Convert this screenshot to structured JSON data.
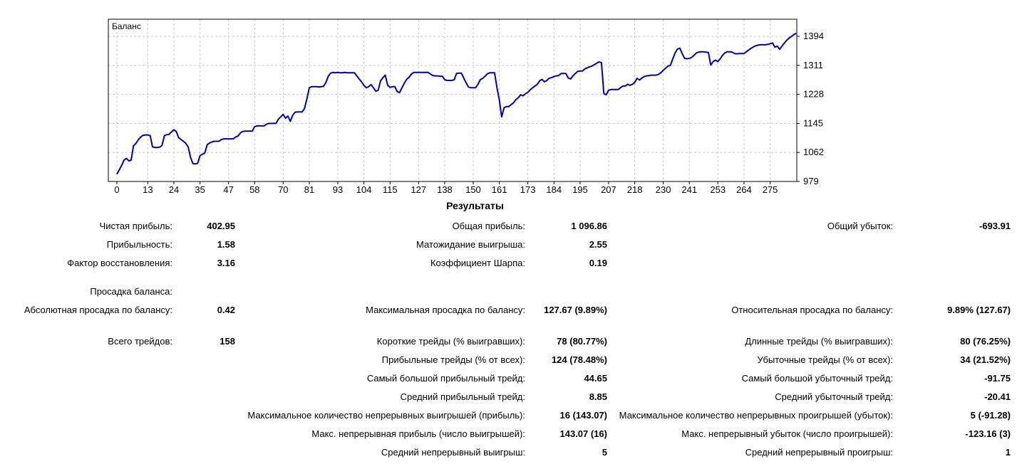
{
  "colors": {
    "line": "#0000A8",
    "grid": "#c8c8c8",
    "border": "#000000",
    "background": "#ffffff",
    "text": "#000000"
  },
  "chart_data": {
    "type": "line",
    "title": "Баланс",
    "legend": [
      "Баланс"
    ],
    "grid": true,
    "y_axis_side": "right",
    "x_ticks": [
      0,
      13,
      24,
      35,
      47,
      58,
      70,
      81,
      93,
      104,
      115,
      127,
      138,
      150,
      161,
      173,
      184,
      195,
      207,
      218,
      230,
      241,
      253,
      264,
      275
    ],
    "y_ticks": [
      1394,
      1311,
      1228,
      1145,
      1062,
      979
    ],
    "xlim": [
      0,
      286
    ],
    "ylim": [
      979,
      1443
    ],
    "points": [
      [
        0,
        1000
      ],
      [
        1,
        1012
      ],
      [
        2,
        1025
      ],
      [
        3,
        1040
      ],
      [
        4,
        1045
      ],
      [
        5,
        1038
      ],
      [
        6,
        1040
      ],
      [
        7,
        1081
      ],
      [
        8,
        1088
      ],
      [
        9,
        1098
      ],
      [
        10,
        1106
      ],
      [
        11,
        1111
      ],
      [
        12,
        1112
      ],
      [
        13,
        1112
      ],
      [
        14,
        1110
      ],
      [
        15,
        1078
      ],
      [
        16,
        1076
      ],
      [
        17,
        1076
      ],
      [
        18,
        1077
      ],
      [
        19,
        1082
      ],
      [
        20,
        1110
      ],
      [
        21,
        1113
      ],
      [
        22,
        1114
      ],
      [
        23,
        1121
      ],
      [
        24,
        1127
      ],
      [
        25,
        1122
      ],
      [
        26,
        1104
      ],
      [
        27,
        1099
      ],
      [
        28,
        1094
      ],
      [
        29,
        1088
      ],
      [
        30,
        1078
      ],
      [
        31,
        1048
      ],
      [
        32,
        1030
      ],
      [
        33,
        1029
      ],
      [
        34,
        1031
      ],
      [
        35,
        1053
      ],
      [
        36,
        1057
      ],
      [
        37,
        1060
      ],
      [
        38,
        1084
      ],
      [
        39,
        1089
      ],
      [
        40,
        1092
      ],
      [
        41,
        1094
      ],
      [
        42,
        1094
      ],
      [
        43,
        1094
      ],
      [
        44,
        1099
      ],
      [
        45,
        1101
      ],
      [
        46,
        1101
      ],
      [
        47,
        1101
      ],
      [
        48,
        1101
      ],
      [
        49,
        1101
      ],
      [
        50,
        1106
      ],
      [
        51,
        1109
      ],
      [
        52,
        1118
      ],
      [
        53,
        1122
      ],
      [
        54,
        1123
      ],
      [
        55,
        1123
      ],
      [
        56,
        1123
      ],
      [
        57,
        1123
      ],
      [
        58,
        1136
      ],
      [
        59,
        1138
      ],
      [
        60,
        1138
      ],
      [
        61,
        1138
      ],
      [
        62,
        1138
      ],
      [
        63,
        1143
      ],
      [
        64,
        1145
      ],
      [
        65,
        1145
      ],
      [
        66,
        1145
      ],
      [
        67,
        1145
      ],
      [
        68,
        1157
      ],
      [
        69,
        1164
      ],
      [
        70,
        1171
      ],
      [
        71,
        1160
      ],
      [
        72,
        1166
      ],
      [
        73,
        1151
      ],
      [
        74,
        1168
      ],
      [
        75,
        1177
      ],
      [
        76,
        1178
      ],
      [
        77,
        1178
      ],
      [
        78,
        1178
      ],
      [
        79,
        1188
      ],
      [
        80,
        1215
      ],
      [
        81,
        1247
      ],
      [
        82,
        1250
      ],
      [
        83,
        1250
      ],
      [
        84,
        1250
      ],
      [
        85,
        1249
      ],
      [
        86,
        1250
      ],
      [
        87,
        1251
      ],
      [
        88,
        1262
      ],
      [
        89,
        1280
      ],
      [
        90,
        1289
      ],
      [
        91,
        1291
      ],
      [
        92,
        1290
      ],
      [
        93,
        1291
      ],
      [
        94,
        1290
      ],
      [
        95,
        1290
      ],
      [
        96,
        1291
      ],
      [
        97,
        1290
      ],
      [
        98,
        1290
      ],
      [
        99,
        1290
      ],
      [
        100,
        1290
      ],
      [
        101,
        1281
      ],
      [
        102,
        1272
      ],
      [
        103,
        1264
      ],
      [
        104,
        1254
      ],
      [
        105,
        1247
      ],
      [
        106,
        1250
      ],
      [
        107,
        1256
      ],
      [
        108,
        1247
      ],
      [
        109,
        1237
      ],
      [
        110,
        1240
      ],
      [
        111,
        1267
      ],
      [
        112,
        1276
      ],
      [
        113,
        1283
      ],
      [
        114,
        1254
      ],
      [
        115,
        1248
      ],
      [
        116,
        1250
      ],
      [
        117,
        1250
      ],
      [
        118,
        1236
      ],
      [
        119,
        1233
      ],
      [
        120,
        1247
      ],
      [
        121,
        1260
      ],
      [
        122,
        1271
      ],
      [
        123,
        1277
      ],
      [
        124,
        1286
      ],
      [
        125,
        1291
      ],
      [
        127,
        1291
      ],
      [
        129,
        1291
      ],
      [
        131,
        1291
      ],
      [
        132,
        1286
      ],
      [
        133,
        1282
      ],
      [
        134,
        1281
      ],
      [
        135,
        1281
      ],
      [
        136,
        1280
      ],
      [
        137,
        1280
      ],
      [
        138,
        1270
      ],
      [
        139,
        1268
      ],
      [
        140,
        1268
      ],
      [
        141,
        1268
      ],
      [
        142,
        1270
      ],
      [
        143,
        1288
      ],
      [
        144,
        1289
      ],
      [
        145,
        1289
      ],
      [
        146,
        1275
      ],
      [
        147,
        1261
      ],
      [
        148,
        1249
      ],
      [
        149,
        1247
      ],
      [
        150,
        1247
      ],
      [
        151,
        1247
      ],
      [
        152,
        1257
      ],
      [
        153,
        1270
      ],
      [
        154,
        1274
      ],
      [
        155,
        1280
      ],
      [
        156,
        1287
      ],
      [
        157,
        1290
      ],
      [
        158,
        1290
      ],
      [
        159,
        1290
      ],
      [
        160,
        1247
      ],
      [
        161,
        1212
      ],
      [
        162,
        1164
      ],
      [
        163,
        1190
      ],
      [
        164,
        1193
      ],
      [
        165,
        1193
      ],
      [
        166,
        1199
      ],
      [
        167,
        1204
      ],
      [
        168,
        1213
      ],
      [
        169,
        1219
      ],
      [
        170,
        1227
      ],
      [
        171,
        1224
      ],
      [
        172,
        1230
      ],
      [
        173,
        1234
      ],
      [
        174,
        1241
      ],
      [
        175,
        1247
      ],
      [
        176,
        1252
      ],
      [
        177,
        1257
      ],
      [
        178,
        1267
      ],
      [
        179,
        1271
      ],
      [
        180,
        1264
      ],
      [
        181,
        1268
      ],
      [
        182,
        1274
      ],
      [
        183,
        1276
      ],
      [
        184,
        1279
      ],
      [
        185,
        1281
      ],
      [
        186,
        1282
      ],
      [
        187,
        1288
      ],
      [
        188,
        1288
      ],
      [
        189,
        1288
      ],
      [
        190,
        1275
      ],
      [
        191,
        1272
      ],
      [
        192,
        1281
      ],
      [
        193,
        1288
      ],
      [
        194,
        1294
      ],
      [
        195,
        1295
      ],
      [
        196,
        1295
      ],
      [
        197,
        1301
      ],
      [
        198,
        1304
      ],
      [
        199,
        1307
      ],
      [
        200,
        1309
      ],
      [
        201,
        1313
      ],
      [
        202,
        1317
      ],
      [
        203,
        1321
      ],
      [
        204,
        1319
      ],
      [
        205,
        1230
      ],
      [
        206,
        1227
      ],
      [
        207,
        1240
      ],
      [
        208,
        1242
      ],
      [
        209,
        1242
      ],
      [
        210,
        1242
      ],
      [
        211,
        1242
      ],
      [
        212,
        1247
      ],
      [
        213,
        1252
      ],
      [
        214,
        1252
      ],
      [
        215,
        1257
      ],
      [
        216,
        1254
      ],
      [
        217,
        1257
      ],
      [
        218,
        1262
      ],
      [
        219,
        1274
      ],
      [
        220,
        1269
      ],
      [
        221,
        1275
      ],
      [
        222,
        1279
      ],
      [
        223,
        1281
      ],
      [
        224,
        1282
      ],
      [
        225,
        1283
      ],
      [
        226,
        1283
      ],
      [
        227,
        1283
      ],
      [
        228,
        1285
      ],
      [
        229,
        1290
      ],
      [
        230,
        1297
      ],
      [
        231,
        1303
      ],
      [
        232,
        1309
      ],
      [
        233,
        1311
      ],
      [
        234,
        1329
      ],
      [
        235,
        1347
      ],
      [
        236,
        1358
      ],
      [
        237,
        1360
      ],
      [
        238,
        1344
      ],
      [
        239,
        1331
      ],
      [
        240,
        1330
      ],
      [
        241,
        1331
      ],
      [
        242,
        1334
      ],
      [
        243,
        1340
      ],
      [
        244,
        1347
      ],
      [
        245,
        1349
      ],
      [
        246,
        1350
      ],
      [
        247,
        1350
      ],
      [
        248,
        1349
      ],
      [
        249,
        1348
      ],
      [
        250,
        1312
      ],
      [
        251,
        1322
      ],
      [
        252,
        1326
      ],
      [
        253,
        1322
      ],
      [
        254,
        1330
      ],
      [
        255,
        1340
      ],
      [
        256,
        1347
      ],
      [
        257,
        1350
      ],
      [
        258,
        1350
      ],
      [
        259,
        1349
      ],
      [
        260,
        1345
      ],
      [
        261,
        1344
      ],
      [
        262,
        1345
      ],
      [
        263,
        1345
      ],
      [
        264,
        1345
      ],
      [
        265,
        1350
      ],
      [
        266,
        1355
      ],
      [
        267,
        1360
      ],
      [
        268,
        1364
      ],
      [
        269,
        1367
      ],
      [
        270,
        1369
      ],
      [
        271,
        1370
      ],
      [
        272,
        1370
      ],
      [
        273,
        1370
      ],
      [
        274,
        1371
      ],
      [
        275,
        1373
      ],
      [
        276,
        1375
      ],
      [
        277,
        1363
      ],
      [
        278,
        1366
      ],
      [
        279,
        1357
      ],
      [
        280,
        1366
      ],
      [
        281,
        1375
      ],
      [
        282,
        1383
      ],
      [
        283,
        1389
      ],
      [
        284,
        1394
      ],
      [
        285,
        1399
      ],
      [
        286,
        1403
      ]
    ]
  },
  "results": {
    "title": "Результаты",
    "rows": [
      {
        "c1l": "Чистая прибыль:",
        "c1v": "402.95",
        "c2l": "Общая прибыль:",
        "c2v": "1 096.86",
        "c3l": "Общий убыток:",
        "c3v": "-693.91"
      },
      {
        "c1l": "Прибыльность:",
        "c1v": "1.58",
        "c2l": "Матожидание выигрыша:",
        "c2v": "2.55",
        "c3l": "",
        "c3v": ""
      },
      {
        "c1l": "Фактор восстановления:",
        "c1v": "3.16",
        "c2l": "Коэффициент Шарпа:",
        "c2v": "0.19",
        "c3l": "",
        "c3v": ""
      },
      {
        "c1l": "Просадка баланса:",
        "c1v": "",
        "c2l": "",
        "c2v": "",
        "c3l": "",
        "c3v": ""
      },
      {
        "c1l": "Абсолютная просадка по балансу:",
        "c1v": "0.42",
        "c2l": "Максимальная просадка по балансу:",
        "c2v": "127.67 (9.89%)",
        "c3l": "Относительная просадка по балансу:",
        "c3v": "9.89% (127.67)"
      },
      {
        "c1l": "Всего трейдов:",
        "c1v": "158",
        "c2l": "Короткие трейды (% выигравших):",
        "c2v": "78 (80.77%)",
        "c3l": "Длинные трейды (% выигравших):",
        "c3v": "80 (76.25%)"
      },
      {
        "c1l": "",
        "c1v": "",
        "c2l": "Прибыльные трейды (% от всех):",
        "c2v": "124 (78.48%)",
        "c3l": "Убыточные трейды (% от всех):",
        "c3v": "34 (21.52%)"
      },
      {
        "c1l": "",
        "c1v": "",
        "c2l": "Самый большой прибыльный трейд:",
        "c2v": "44.65",
        "c3l": "Самый большой убыточный трейд:",
        "c3v": "-91.75"
      },
      {
        "c1l": "",
        "c1v": "",
        "c2l": "Средний прибыльный трейд:",
        "c2v": "8.85",
        "c3l": "Средний убыточный трейд:",
        "c3v": "-20.41"
      },
      {
        "c1l": "",
        "c1v": "",
        "c2l": "Максимальное количество непрерывных выигрышей (прибыль):",
        "c2v": "16 (143.07)",
        "c3l": "Максимальное количество непрерывных проигрышей (убыток):",
        "c3v": "5 (-91.28)"
      },
      {
        "c1l": "",
        "c1v": "",
        "c2l": "Макс. непрерывная прибыль (число выигрышей):",
        "c2v": "143.07 (16)",
        "c3l": "Макс. непрерывный убыток (число проигрышей):",
        "c3v": "-123.16 (3)"
      },
      {
        "c1l": "",
        "c1v": "",
        "c2l": "Средний непрерывный выигрыш:",
        "c2v": "5",
        "c3l": "Средний непрерывный проигрыш:",
        "c3v": "1"
      }
    ]
  }
}
